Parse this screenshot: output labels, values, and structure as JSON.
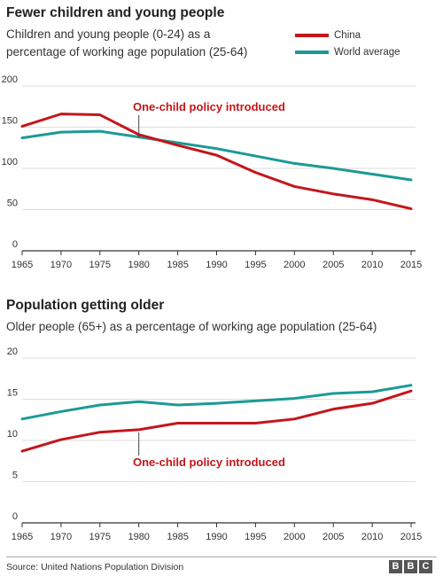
{
  "charts": {
    "top": {
      "title": "Fewer children and young people",
      "subtitle": "Children and young people (0-24) as a percentage of working age population (25-64)",
      "annotation": "One-child policy introduced"
    },
    "bottom": {
      "title": "Population getting older",
      "subtitle": "Older people (65+) as a percentage of working age population (25-64)",
      "annotation": "One-child policy introduced"
    }
  },
  "legend": {
    "china": "China",
    "world": "World average"
  },
  "colors": {
    "china": "#c4161c",
    "world": "#1b9a96",
    "annotation": "#c4161c",
    "grid": "#dddddd",
    "axis": "#333333"
  },
  "footer": {
    "source": "Source: United Nations Population Division",
    "logo": [
      "B",
      "B",
      "C"
    ]
  },
  "chart_data": [
    {
      "type": "line",
      "title": "Fewer children and young people",
      "subtitle": "Children and young people (0-24) as a percentage of working age population (25-64)",
      "x": [
        1965,
        1970,
        1975,
        1980,
        1985,
        1990,
        1995,
        2000,
        2005,
        2010,
        2015
      ],
      "ylim": [
        0,
        200
      ],
      "yticks": [
        0,
        50,
        100,
        150,
        200
      ],
      "grid": true,
      "legend_position": "top-right",
      "series": [
        {
          "name": "China",
          "values": [
            151,
            166,
            165,
            141,
            128,
            116,
            95,
            78,
            69,
            62,
            51
          ]
        },
        {
          "name": "World average",
          "values": [
            137,
            144,
            145,
            138,
            131,
            124,
            115,
            106,
            100,
            93,
            86
          ]
        }
      ],
      "annotation": {
        "text": "One-child policy introduced",
        "x": 1980
      }
    },
    {
      "type": "line",
      "title": "Population getting older",
      "subtitle": "Older people (65+) as a percentage of working age population (25-64)",
      "x": [
        1965,
        1970,
        1975,
        1980,
        1985,
        1990,
        1995,
        2000,
        2005,
        2010,
        2015
      ],
      "ylim": [
        0,
        20
      ],
      "yticks": [
        0,
        5,
        10,
        15,
        20
      ],
      "grid": true,
      "series": [
        {
          "name": "China",
          "values": [
            8.7,
            10.1,
            11.0,
            11.3,
            12.1,
            12.1,
            12.1,
            12.6,
            13.8,
            14.5,
            16.0
          ]
        },
        {
          "name": "World average",
          "values": [
            12.6,
            13.5,
            14.3,
            14.7,
            14.3,
            14.5,
            14.8,
            15.1,
            15.7,
            15.9,
            16.7
          ]
        }
      ],
      "annotation": {
        "text": "One-child policy introduced",
        "x": 1980
      }
    }
  ]
}
